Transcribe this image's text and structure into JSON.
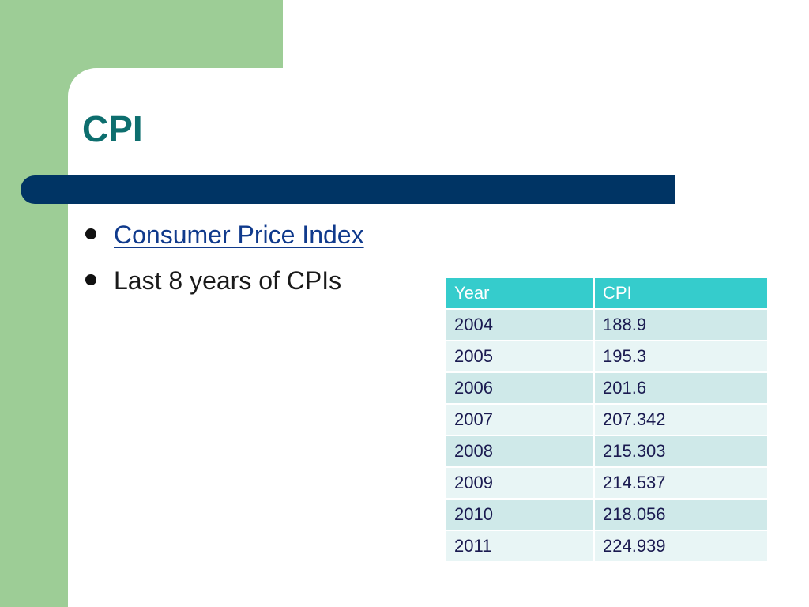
{
  "slide": {
    "title": "CPI",
    "bullets": [
      {
        "text": "Consumer Price Index",
        "is_link": true
      },
      {
        "text": "Last 8 years of CPIs",
        "is_link": false
      }
    ]
  },
  "table": {
    "headers": [
      "Year",
      "CPI"
    ],
    "rows": [
      [
        "2004",
        "188.9"
      ],
      [
        "2005",
        "195.3"
      ],
      [
        "2006",
        "201.6"
      ],
      [
        "2007",
        "207.342"
      ],
      [
        "2008",
        "215.303"
      ],
      [
        "2009",
        "214.537"
      ],
      [
        "2010",
        "218.056"
      ],
      [
        "2011",
        "224.939"
      ]
    ]
  },
  "colors": {
    "accent_green": "#9dcd96",
    "title_teal": "#0d6e6e",
    "bar_navy": "#003464",
    "table_header": "#35cccc",
    "link_blue": "#103a8c"
  }
}
